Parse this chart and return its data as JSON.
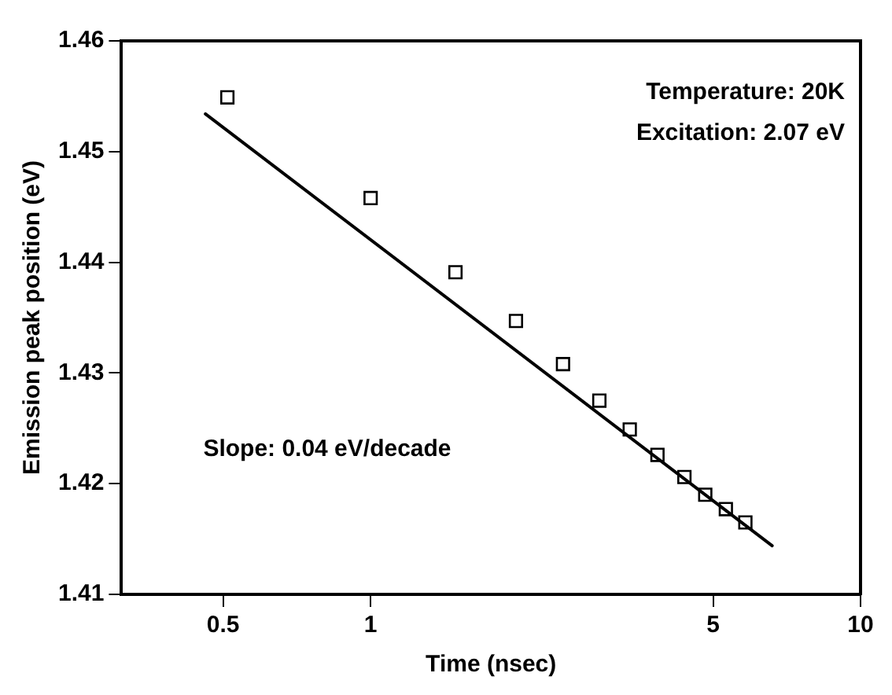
{
  "chart_data": {
    "type": "scatter",
    "xlabel": "Time (nsec)",
    "ylabel": "Emission peak position (eV)",
    "annotations": [
      "Temperature: 20K",
      "Excitation: 2.07 eV",
      "Slope: 0.04 eV/decade"
    ],
    "log": "x",
    "xlim": [
      0.31,
      10
    ],
    "xticks": [
      0.5,
      1,
      5,
      10
    ],
    "ylim": [
      1.41,
      1.46
    ],
    "yticks": [
      1.41,
      1.42,
      1.43,
      1.44,
      1.45,
      1.46
    ],
    "grid": false,
    "legend": false,
    "series": [
      {
        "type": "scatter",
        "marker": "square",
        "color": "#000000",
        "x": [
          0.51,
          1.0,
          1.49,
          1.98,
          2.47,
          2.93,
          3.38,
          3.85,
          4.37,
          4.82,
          5.31,
          5.82
        ],
        "values": [
          1.4549,
          1.4458,
          1.4391,
          1.4347,
          1.4308,
          1.4275,
          1.4249,
          1.4226,
          1.4206,
          1.419,
          1.4177,
          1.4165
        ]
      },
      {
        "type": "line",
        "marker": "none",
        "line_style": "solid",
        "color": "#000000",
        "x": [
          0.46,
          6.6
        ],
        "values": [
          1.4534,
          1.4144
        ]
      }
    ]
  }
}
